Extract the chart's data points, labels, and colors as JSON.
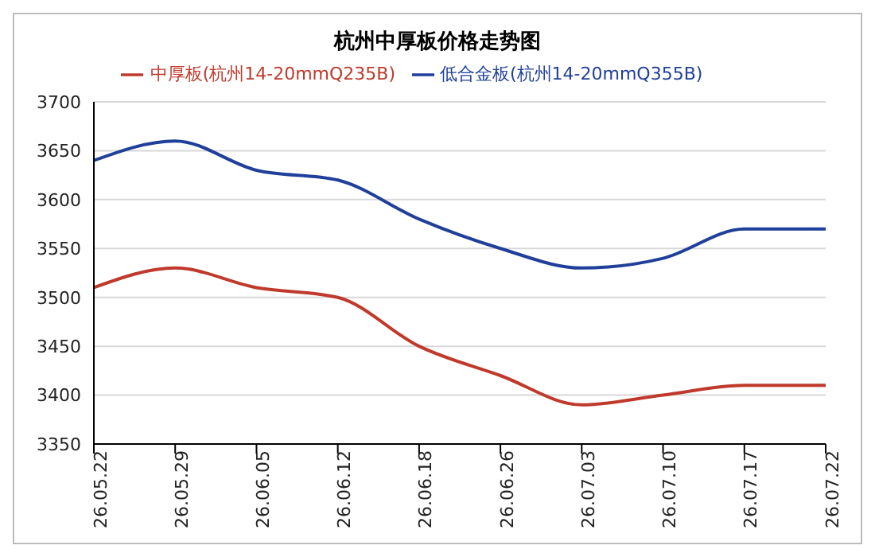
{
  "chart_data": {
    "type": "line",
    "title": "杭州中厚板价格走势图",
    "categories": [
      "26.05.22",
      "26.05.29",
      "26.06.05",
      "26.06.12",
      "26.06.18",
      "26.06.26",
      "26.07.03",
      "26.07.10",
      "26.07.17",
      "26.07.22"
    ],
    "series": [
      {
        "name": "中厚板(杭州14-20mmQ235B)",
        "color": "#c0392b",
        "values": [
          3510,
          3530,
          3510,
          3500,
          3450,
          3420,
          3390,
          3400,
          3410,
          3410
        ]
      },
      {
        "name": "低合金板(杭州14-20mmQ355B)",
        "color": "#1f3f9a",
        "values": [
          3640,
          3660,
          3630,
          3620,
          3580,
          3550,
          3530,
          3540,
          3570,
          3570
        ]
      }
    ],
    "ylim": [
      3350,
      3700
    ],
    "yticks": [
      3350,
      3400,
      3450,
      3500,
      3550,
      3600,
      3650,
      3700
    ],
    "grid": "y",
    "legend": "top",
    "marker": "none",
    "line_style": "solid"
  }
}
